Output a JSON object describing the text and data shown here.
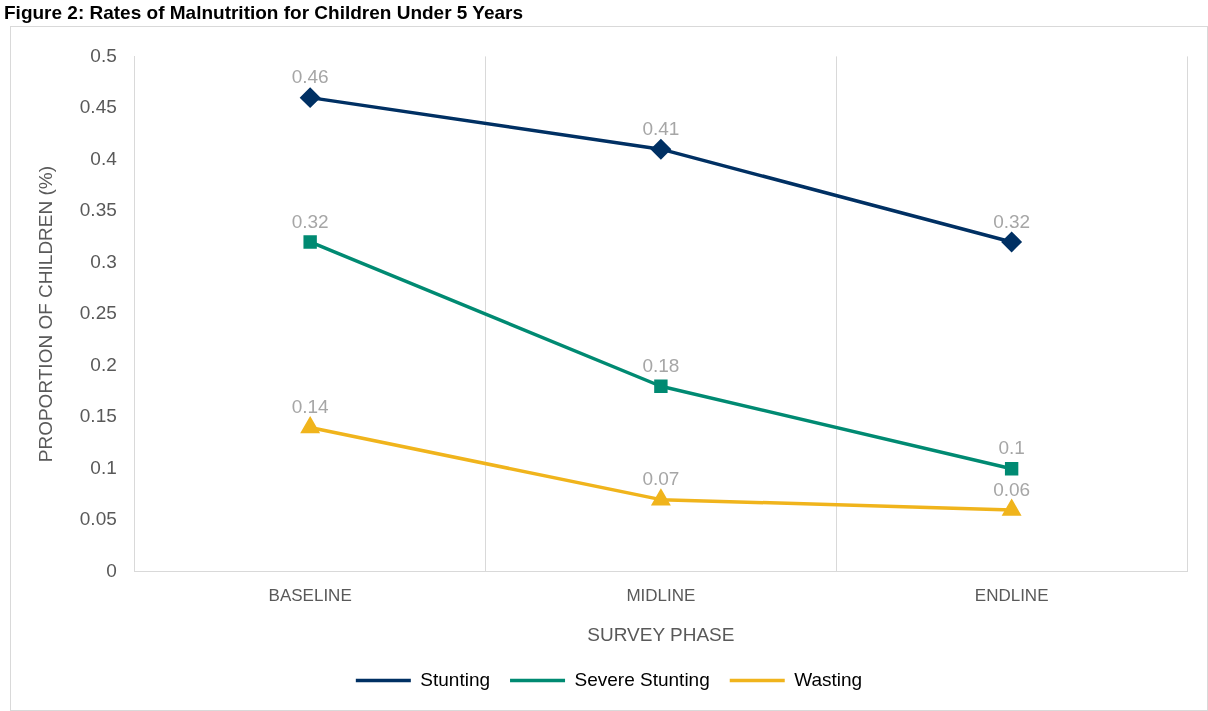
{
  "chart_data": {
    "type": "line",
    "title": "Figure 2: Rates of Malnutrition for Children Under 5 Years",
    "xlabel": "SURVEY PHASE",
    "ylabel": "PROPORTION OF CHILDREN (%)",
    "categories": [
      "BASELINE",
      "MIDLINE",
      "ENDLINE"
    ],
    "series": [
      {
        "name": "Stunting",
        "color": "#003063",
        "marker": "diamond",
        "values": [
          0.46,
          0.41,
          0.32
        ]
      },
      {
        "name": "Severe Stunting",
        "color": "#008a72",
        "marker": "square",
        "values": [
          0.32,
          0.18,
          0.1
        ]
      },
      {
        "name": "Wasting",
        "color": "#f0b41c",
        "marker": "triangle",
        "values": [
          0.14,
          0.07,
          0.06
        ]
      }
    ],
    "ylim": [
      0,
      0.5
    ],
    "yticks": [
      0,
      0.05,
      0.1,
      0.15,
      0.2,
      0.25,
      0.3,
      0.35,
      0.4,
      0.45,
      0.5
    ],
    "grid": "x",
    "legend": "bottom",
    "data_labels": true,
    "line_style": "solid"
  }
}
